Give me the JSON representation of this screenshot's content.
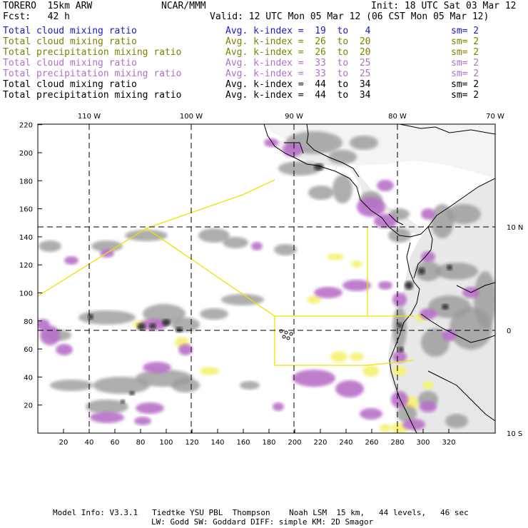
{
  "header": {
    "model": "TORERO  15km ARW",
    "org": "NCAR/MMM",
    "init": "Init: 18 UTC Sat 03 Mar 12",
    "fcst": "Fcst:   42 h",
    "valid": "Valid: 12 UTC Mon 05 Mar 12 (06 CST Mon 05 Mar 12)"
  },
  "legend": [
    {
      "field": "Total cloud mixing ratio",
      "index": "Avg. k-index =  19  to   4",
      "sm": "sm= 2",
      "color": "#1a1acc"
    },
    {
      "field": "Total cloud mixing ratio",
      "index": "Avg. k-index =  26  to  20",
      "sm": "sm= 2",
      "color": "#808000"
    },
    {
      "field": "Total precipitation mixing ratio",
      "index": "Avg. k-index =  26  to  20",
      "sm": "sm= 2",
      "color": "#808000"
    },
    {
      "field": "Total cloud mixing ratio",
      "index": "Avg. k-index =  33  to  25",
      "sm": "sm= 2",
      "color": "#b070c8"
    },
    {
      "field": "Total precipitation mixing ratio",
      "index": "Avg. k-index =  33  to  25",
      "sm": "sm= 2",
      "color": "#b070c8"
    },
    {
      "field": "Total cloud mixing ratio",
      "index": "Avg. k-index =  44  to  34",
      "sm": "sm= 2",
      "color": "#000000"
    },
    {
      "field": "Total precipitation mixing ratio",
      "index": "Avg. k-index =  44  to  34",
      "sm": "sm= 2",
      "color": "#000000"
    }
  ],
  "map": {
    "lon_labels": [
      "110 W",
      "100 W",
      "90 W",
      "80 W",
      "70 W"
    ],
    "lat_labels": [
      "10 N",
      "0",
      "10 S"
    ],
    "x_ticks": [
      "20",
      "40",
      "60",
      "80",
      "100",
      "120",
      "140",
      "160",
      "180",
      "200",
      "220",
      "240",
      "260",
      "280",
      "300",
      "320"
    ],
    "y_ticks": [
      "20",
      "40",
      "60",
      "80",
      "100",
      "120",
      "140",
      "160",
      "180",
      "200",
      "220"
    ],
    "colors": {
      "cloud_gray": "#9a9a9a",
      "cloud_dark": "#303030",
      "precip_purple": "#b870c8",
      "yellow": "#f6f27a",
      "outline_yellow": "#f0e000",
      "coast": "#000000"
    }
  },
  "footer": {
    "line1": "Model Info: V3.3.1   Tiedtke YSU PBL  Thompson    Noah LSM  15 km,   44 levels,   46 sec",
    "line2": "LW: Godd SW: Goddard DIFF: simple KM: 2D Smagor"
  }
}
